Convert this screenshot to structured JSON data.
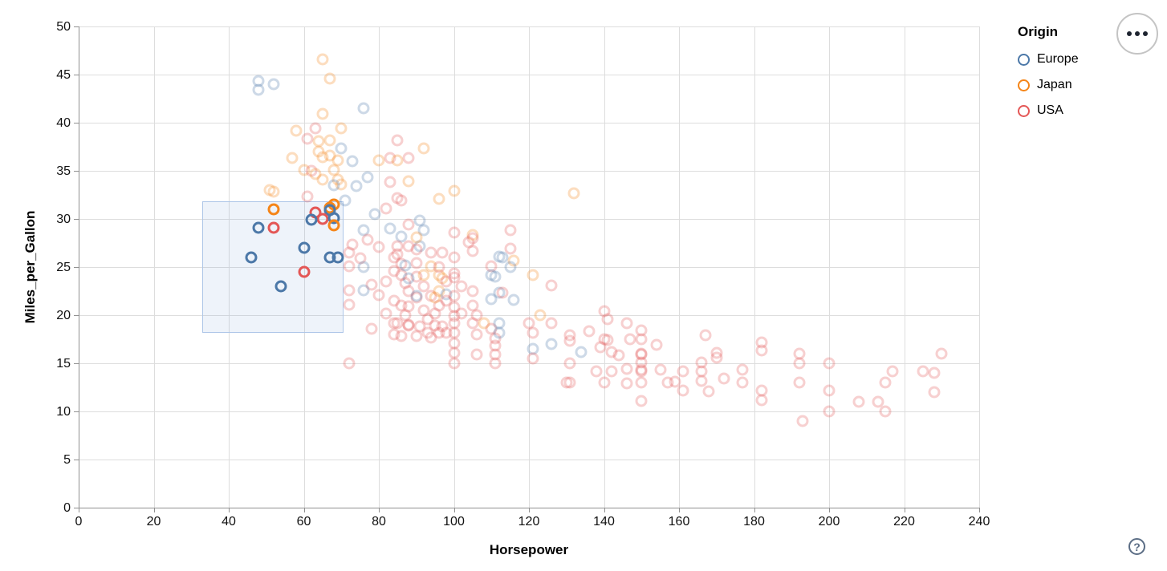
{
  "legend": {
    "title": "Origin",
    "items": [
      {
        "label": "Europe",
        "color": "#4c78a8"
      },
      {
        "label": "Japan",
        "color": "#f58518"
      },
      {
        "label": "USA",
        "color": "#e45756"
      }
    ]
  },
  "controls": {
    "menu_button": "menu",
    "help_button": "?"
  },
  "chart_data": {
    "type": "scatter",
    "title": "",
    "xlabel": "Horsepower",
    "ylabel": "Miles_per_Gallon",
    "xlim": [
      0,
      240
    ],
    "ylim": [
      0,
      50
    ],
    "x_ticks": [
      0,
      20,
      40,
      60,
      80,
      100,
      120,
      140,
      160,
      180,
      200,
      220,
      240
    ],
    "y_ticks": [
      0,
      5,
      10,
      15,
      20,
      25,
      30,
      35,
      40,
      45,
      50
    ],
    "grid": true,
    "legend_position": "top-right",
    "colors": {
      "Europe": "#4c78a8",
      "Japan": "#f58518",
      "USA": "#e45756"
    },
    "point_shape": "open-circle",
    "unselected_opacity": 0.28,
    "brush_selection": {
      "hp": [
        33,
        70.5
      ],
      "mpg": [
        18.2,
        31.8
      ]
    },
    "selected_points": [
      [
        "Japan",
        52,
        31.0
      ],
      [
        "Japan",
        68,
        31.5
      ],
      [
        "Japan",
        67,
        31.2
      ],
      [
        "Europe",
        67,
        30.9
      ],
      [
        "USA",
        63,
        30.7
      ],
      [
        "USA",
        65,
        30.0
      ],
      [
        "Europe",
        62,
        29.9
      ],
      [
        "Europe",
        68,
        30.1
      ],
      [
        "Japan",
        68,
        29.3
      ],
      [
        "Europe",
        48,
        29.1
      ],
      [
        "USA",
        52,
        29.1
      ],
      [
        "Europe",
        60,
        27.0
      ],
      [
        "Europe",
        46,
        26.0
      ],
      [
        "Europe",
        67,
        26.0
      ],
      [
        "Europe",
        69,
        26.0
      ],
      [
        "USA",
        60,
        24.5
      ],
      [
        "Europe",
        54,
        23.0
      ]
    ],
    "points": [
      [
        "Japan",
        65,
        46.6
      ],
      [
        "Japan",
        67,
        44.6
      ],
      [
        "Europe",
        48,
        44.3
      ],
      [
        "Europe",
        48,
        43.4
      ],
      [
        "Europe",
        52,
        44.0
      ],
      [
        "Europe",
        76,
        41.5
      ],
      [
        "Japan",
        65,
        40.9
      ],
      [
        "Japan",
        70,
        39.4
      ],
      [
        "Japan",
        58,
        39.2
      ],
      [
        "USA",
        63,
        39.4
      ],
      [
        "Japan",
        64,
        38.1
      ],
      [
        "Japan",
        67,
        38.2
      ],
      [
        "USA",
        61,
        38.3
      ],
      [
        "USA",
        85,
        38.2
      ],
      [
        "Europe",
        70,
        37.3
      ],
      [
        "Japan",
        92,
        37.3
      ],
      [
        "Japan",
        64,
        37.0
      ],
      [
        "Japan",
        57,
        36.3
      ],
      [
        "Japan",
        69,
        36.1
      ],
      [
        "Japan",
        65,
        36.4
      ],
      [
        "Japan",
        67,
        36.6
      ],
      [
        "Europe",
        73,
        36.0
      ],
      [
        "Japan",
        80,
        36.1
      ],
      [
        "USA",
        83,
        36.3
      ],
      [
        "Japan",
        85,
        36.1
      ],
      [
        "USA",
        88,
        36.3
      ],
      [
        "Japan",
        60,
        35.1
      ],
      [
        "Japan",
        68,
        35.1
      ],
      [
        "USA",
        62,
        35.0
      ],
      [
        "Japan",
        63,
        34.7
      ],
      [
        "Japan",
        65,
        34.1
      ],
      [
        "Japan",
        69,
        34.1
      ],
      [
        "Europe",
        77,
        34.3
      ],
      [
        "Europe",
        74,
        33.4
      ],
      [
        "Japan",
        70,
        33.6
      ],
      [
        "Europe",
        68,
        33.5
      ],
      [
        "USA",
        83,
        33.8
      ],
      [
        "Japan",
        88,
        33.9
      ],
      [
        "Japan",
        51,
        33.0
      ],
      [
        "Japan",
        52,
        32.8
      ],
      [
        "Japan",
        100,
        32.9
      ],
      [
        "Japan",
        132,
        32.7
      ],
      [
        "Japan",
        96,
        32.1
      ],
      [
        "USA",
        85,
        32.2
      ],
      [
        "USA",
        86,
        31.9
      ],
      [
        "USA",
        61,
        32.3
      ],
      [
        "Europe",
        71,
        31.9
      ],
      [
        "USA",
        82,
        31.1
      ],
      [
        "Europe",
        79,
        30.5
      ],
      [
        "USA",
        88,
        29.4
      ],
      [
        "Europe",
        91,
        29.8
      ],
      [
        "Europe",
        83,
        29.0
      ],
      [
        "Europe",
        86,
        28.2
      ],
      [
        "USA",
        72,
        26.5
      ],
      [
        "USA",
        73,
        27.3
      ],
      [
        "Europe",
        76,
        28.8
      ],
      [
        "USA",
        77,
        27.8
      ],
      [
        "USA",
        80,
        27.1
      ],
      [
        "Europe",
        91,
        27.2
      ],
      [
        "Europe",
        92,
        28.8
      ],
      [
        "USA",
        97,
        26.5
      ],
      [
        "USA",
        100,
        28.6
      ],
      [
        "Japan",
        105,
        28.3
      ],
      [
        "USA",
        104,
        27.6
      ],
      [
        "USA",
        105,
        28.0
      ],
      [
        "USA",
        105,
        26.7
      ],
      [
        "USA",
        115,
        28.8
      ],
      [
        "USA",
        115,
        26.9
      ],
      [
        "Europe",
        113,
        26.0
      ],
      [
        "Japan",
        116,
        25.7
      ],
      [
        "Europe",
        115,
        25.0
      ],
      [
        "USA",
        110,
        25.1
      ],
      [
        "Europe",
        110,
        24.2
      ],
      [
        "Japan",
        121,
        24.2
      ],
      [
        "USA",
        85,
        27.2
      ],
      [
        "USA",
        85,
        26.3
      ],
      [
        "Europe",
        112,
        26.1
      ],
      [
        "USA",
        88,
        27.2
      ],
      [
        "Japan",
        90,
        28.1
      ],
      [
        "USA",
        90,
        26.8
      ],
      [
        "USA",
        94,
        26.5
      ],
      [
        "USA",
        84,
        26.0
      ],
      [
        "USA",
        72,
        25.1
      ],
      [
        "USA",
        75,
        25.9
      ],
      [
        "Europe",
        76,
        25.0
      ],
      [
        "USA",
        78,
        23.2
      ],
      [
        "Europe",
        76,
        22.6
      ],
      [
        "USA",
        72,
        22.6
      ],
      [
        "USA",
        72,
        21.1
      ],
      [
        "USA",
        78,
        18.6
      ],
      [
        "USA",
        86,
        25.3
      ],
      [
        "USA",
        86,
        24.2
      ],
      [
        "USA",
        87,
        23.3
      ],
      [
        "USA",
        88,
        22.5
      ],
      [
        "USA",
        90,
        21.8
      ],
      [
        "USA",
        88,
        20.9
      ],
      [
        "USA",
        87,
        20.0
      ],
      [
        "USA",
        85,
        19.2
      ],
      [
        "USA",
        84,
        18.0
      ],
      [
        "USA",
        90,
        17.8
      ],
      [
        "Europe",
        87,
        25.2
      ],
      [
        "USA",
        90,
        24.0
      ],
      [
        "USA",
        92,
        23.0
      ],
      [
        "USA",
        94,
        22.0
      ],
      [
        "USA",
        92,
        20.5
      ],
      [
        "USA",
        93,
        19.6
      ],
      [
        "USA",
        95,
        18.9
      ],
      [
        "USA",
        96,
        18.2
      ],
      [
        "Japan",
        94,
        25.1
      ],
      [
        "Japan",
        96,
        24.2
      ],
      [
        "Japan",
        96,
        22.5
      ],
      [
        "Japan",
        97,
        23.8
      ],
      [
        "Europe",
        98,
        22.2
      ],
      [
        "USA",
        100,
        26.0
      ],
      [
        "USA",
        100,
        24.3
      ],
      [
        "USA",
        100,
        23.9
      ],
      [
        "USA",
        100,
        22.0
      ],
      [
        "USA",
        100,
        20.8
      ],
      [
        "USA",
        100,
        19.9
      ],
      [
        "USA",
        100,
        19.2
      ],
      [
        "USA",
        100,
        18.2
      ],
      [
        "USA",
        100,
        17.1
      ],
      [
        "USA",
        100,
        16.1
      ],
      [
        "USA",
        100,
        15.0
      ],
      [
        "USA",
        105,
        22.5
      ],
      [
        "Europe",
        110,
        21.7
      ],
      [
        "Europe",
        112,
        22.3
      ],
      [
        "Europe",
        116,
        21.6
      ],
      [
        "Europe",
        111,
        24.0
      ],
      [
        "USA",
        105,
        21.0
      ],
      [
        "USA",
        106,
        20.0
      ],
      [
        "USA",
        110,
        18.6
      ],
      [
        "USA",
        111,
        17.6
      ],
      [
        "USA",
        111,
        16.8
      ],
      [
        "USA",
        111,
        15.9
      ],
      [
        "USA",
        111,
        15.0
      ],
      [
        "USA",
        105,
        19.2
      ],
      [
        "USA",
        106,
        18.0
      ],
      [
        "USA",
        106,
        15.9
      ],
      [
        "Japan",
        108,
        19.2
      ],
      [
        "Europe",
        112,
        19.2
      ],
      [
        "Europe",
        112,
        18.2
      ],
      [
        "USA",
        120,
        19.2
      ],
      [
        "USA",
        88,
        19.0
      ],
      [
        "USA",
        91,
        18.8
      ],
      [
        "USA",
        93,
        18.2
      ],
      [
        "USA",
        97,
        18.8
      ],
      [
        "USA",
        98,
        18.2
      ],
      [
        "USA",
        84,
        19.2
      ],
      [
        "USA",
        86,
        17.8
      ],
      [
        "USA",
        96,
        21.0
      ],
      [
        "USA",
        95,
        20.2
      ],
      [
        "Japan",
        92,
        24.2
      ],
      [
        "Europe",
        88,
        23.8
      ],
      [
        "USA",
        84,
        24.6
      ],
      [
        "USA",
        82,
        23.5
      ],
      [
        "USA",
        80,
        22.1
      ],
      [
        "USA",
        84,
        21.5
      ],
      [
        "USA",
        82,
        20.2
      ],
      [
        "USA",
        86,
        21.0
      ],
      [
        "USA",
        90,
        25.4
      ],
      [
        "USA",
        96,
        25.0
      ],
      [
        "USA",
        98,
        23.5
      ],
      [
        "USA",
        102,
        23.0
      ],
      [
        "USA",
        98,
        21.5
      ],
      [
        "USA",
        102,
        20.2
      ],
      [
        "Europe",
        90,
        22.0
      ],
      [
        "Japan",
        95,
        21.8
      ],
      [
        "USA",
        88,
        18.9
      ],
      [
        "USA",
        94,
        17.7
      ],
      [
        "USA",
        113,
        22.3
      ],
      [
        "USA",
        126,
        23.1
      ],
      [
        "Japan",
        123,
        20.0
      ],
      [
        "USA",
        126,
        19.2
      ],
      [
        "USA",
        121,
        18.2
      ],
      [
        "Europe",
        121,
        16.5
      ],
      [
        "USA",
        121,
        15.5
      ],
      [
        "Europe",
        126,
        17.0
      ],
      [
        "USA",
        131,
        17.9
      ],
      [
        "USA",
        131,
        17.3
      ],
      [
        "Europe",
        134,
        16.2
      ],
      [
        "USA",
        136,
        18.3
      ],
      [
        "USA",
        131,
        15.0
      ],
      [
        "USA",
        130,
        13.0
      ],
      [
        "USA",
        131,
        13.0
      ],
      [
        "USA",
        140,
        20.4
      ],
      [
        "USA",
        141,
        19.6
      ],
      [
        "USA",
        140,
        17.5
      ],
      [
        "USA",
        141,
        17.4
      ],
      [
        "USA",
        139,
        16.7
      ],
      [
        "USA",
        142,
        16.2
      ],
      [
        "USA",
        138,
        14.2
      ],
      [
        "USA",
        142,
        14.2
      ],
      [
        "USA",
        140,
        13.0
      ],
      [
        "USA",
        144,
        15.8
      ],
      [
        "USA",
        146,
        19.2
      ],
      [
        "USA",
        147,
        17.5
      ],
      [
        "USA",
        146,
        14.4
      ],
      [
        "USA",
        146,
        12.9
      ],
      [
        "USA",
        150,
        18.4
      ],
      [
        "USA",
        150,
        17.5
      ],
      [
        "USA",
        150,
        16.0
      ],
      [
        "USA",
        150,
        15.9
      ],
      [
        "USA",
        150,
        15.1
      ],
      [
        "USA",
        150,
        14.3
      ],
      [
        "USA",
        150,
        14.2
      ],
      [
        "USA",
        150,
        13.0
      ],
      [
        "USA",
        150,
        11.1
      ],
      [
        "USA",
        154,
        16.9
      ],
      [
        "USA",
        155,
        14.3
      ],
      [
        "USA",
        157,
        13.0
      ],
      [
        "USA",
        159,
        13.1
      ],
      [
        "USA",
        161,
        14.2
      ],
      [
        "USA",
        161,
        12.2
      ],
      [
        "USA",
        167,
        17.9
      ],
      [
        "USA",
        166,
        15.1
      ],
      [
        "USA",
        166,
        14.2
      ],
      [
        "USA",
        166,
        13.2
      ],
      [
        "USA",
        168,
        12.1
      ],
      [
        "USA",
        170,
        16.1
      ],
      [
        "USA",
        170,
        15.6
      ],
      [
        "USA",
        172,
        13.4
      ],
      [
        "USA",
        177,
        14.3
      ],
      [
        "USA",
        177,
        13.0
      ],
      [
        "USA",
        182,
        17.2
      ],
      [
        "USA",
        182,
        16.3
      ],
      [
        "USA",
        182,
        12.2
      ],
      [
        "USA",
        182,
        11.2
      ],
      [
        "USA",
        192,
        16.0
      ],
      [
        "USA",
        192,
        15.0
      ],
      [
        "USA",
        192,
        13.0
      ],
      [
        "USA",
        200,
        15.0
      ],
      [
        "USA",
        200,
        12.2
      ],
      [
        "USA",
        200,
        10.0
      ],
      [
        "USA",
        193,
        9.0
      ],
      [
        "USA",
        208,
        11.0
      ],
      [
        "USA",
        213,
        11.0
      ],
      [
        "USA",
        215,
        10.0
      ],
      [
        "USA",
        217,
        14.2
      ],
      [
        "USA",
        215,
        13.0
      ],
      [
        "USA",
        225,
        14.2
      ],
      [
        "USA",
        228,
        14.0
      ],
      [
        "USA",
        228,
        12.0
      ],
      [
        "USA",
        230,
        16.0
      ],
      [
        "USA",
        72,
        15.0
      ]
    ]
  }
}
